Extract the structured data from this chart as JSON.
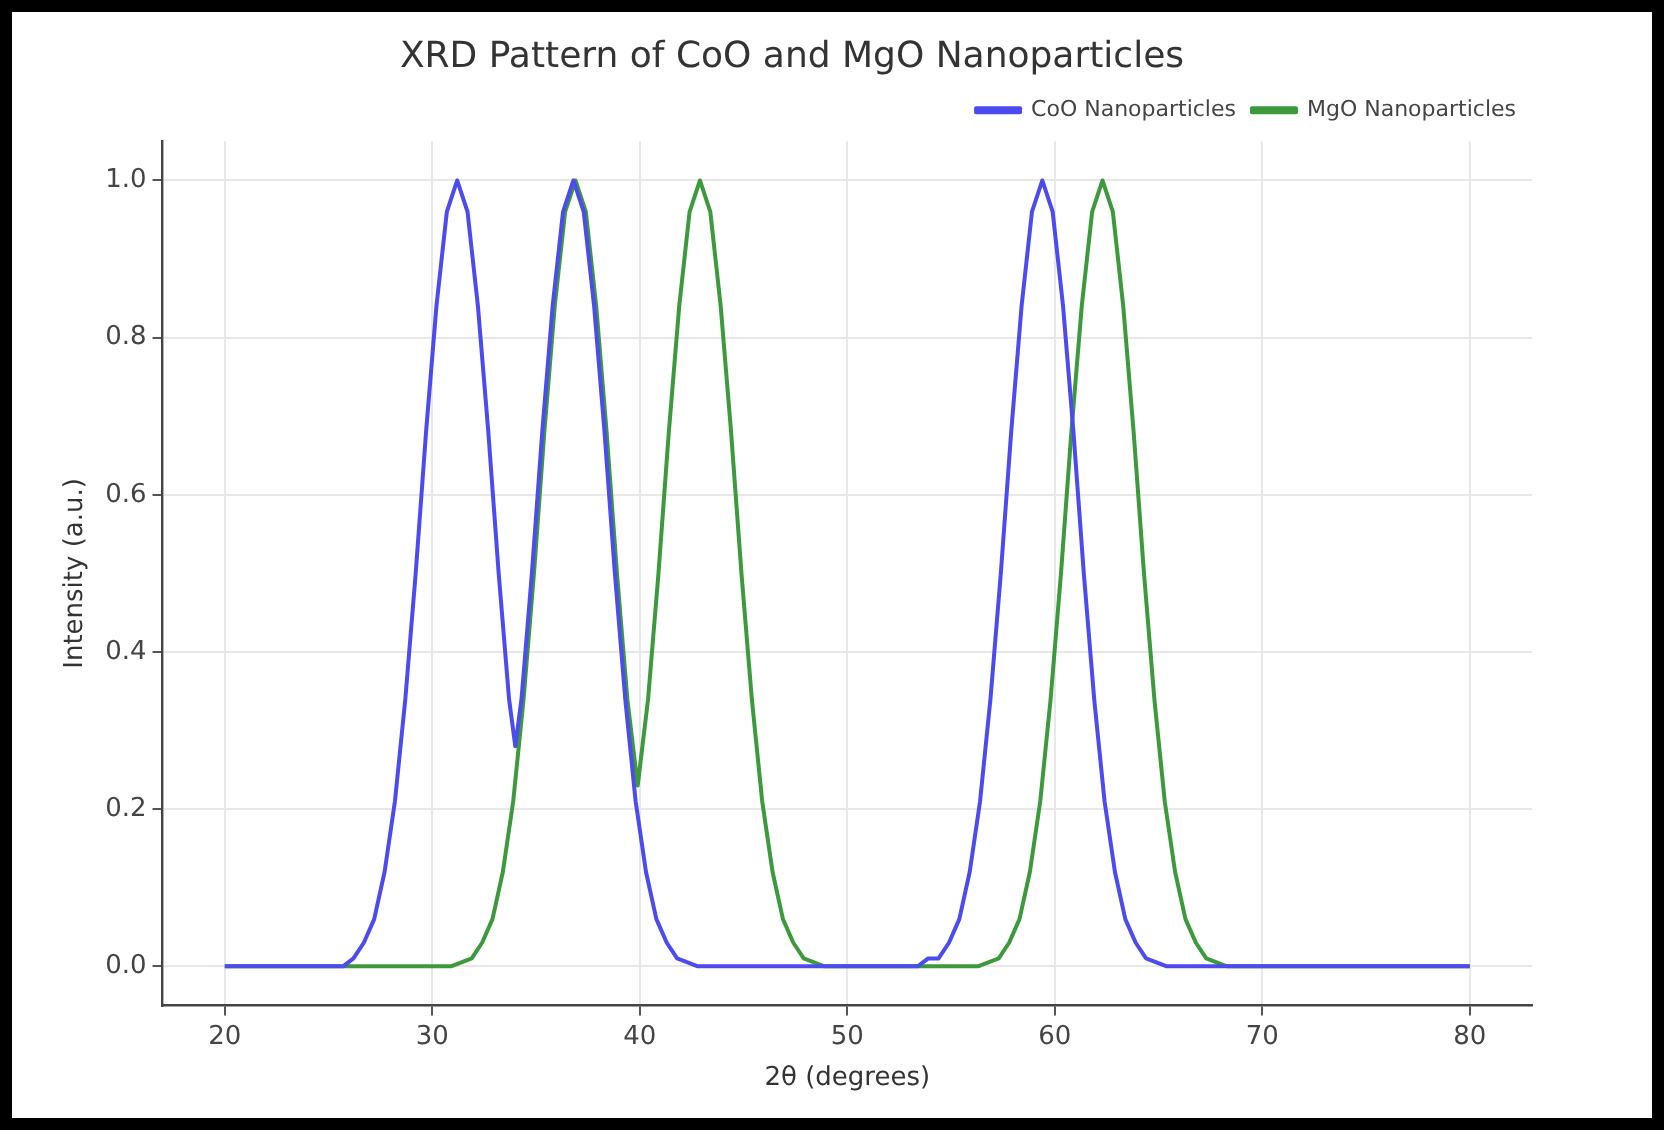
{
  "chart_data": {
    "type": "line",
    "title": "XRD Pattern of CoO and MgO Nanoparticles",
    "xlabel": "2θ (degrees)",
    "ylabel": "Intensity (a.u.)",
    "xlim": [
      17,
      83
    ],
    "xticks": [
      20,
      30,
      40,
      50,
      60,
      70,
      80
    ],
    "ylim": [
      -0.05,
      1.05
    ],
    "yticks": [
      {
        "value": 0,
        "label": "0.0"
      },
      0.2,
      0.4,
      0.6,
      0.8,
      {
        "value": 1,
        "label": "1.0"
      }
    ],
    "grid": true,
    "legend": "top right",
    "marker": "none",
    "line_style": "solid",
    "series": [
      {
        "name": "CoO Nanoparticles",
        "color": "#4b4bf0",
        "x": [
          20,
          25.7,
          26.2,
          26.7,
          27.2,
          27.7,
          28.2,
          28.7,
          29.2,
          29.7,
          30.2,
          30.7,
          31.2,
          31.7,
          32.2,
          32.7,
          33.2,
          33.7,
          34.0,
          34.3,
          34.8,
          35.3,
          35.8,
          36.3,
          36.8,
          37.3,
          37.8,
          38.3,
          38.8,
          39.3,
          39.8,
          40.3,
          40.8,
          41.3,
          41.8,
          42.8,
          53.4,
          53.9,
          54.4,
          54.9,
          55.4,
          55.9,
          56.4,
          56.9,
          57.4,
          57.9,
          58.4,
          58.9,
          59.4,
          59.9,
          60.4,
          60.9,
          61.4,
          61.9,
          62.4,
          62.9,
          63.4,
          63.9,
          64.4,
          65.4,
          80
        ],
        "values": [
          0,
          0,
          0.01,
          0.03,
          0.06,
          0.12,
          0.21,
          0.34,
          0.5,
          0.68,
          0.84,
          0.96,
          1,
          0.96,
          0.84,
          0.68,
          0.5,
          0.34,
          0.28,
          0.34,
          0.5,
          0.68,
          0.84,
          0.96,
          1,
          0.96,
          0.84,
          0.68,
          0.5,
          0.34,
          0.21,
          0.12,
          0.06,
          0.03,
          0.01,
          0,
          0,
          0.01,
          0.01,
          0.03,
          0.06,
          0.12,
          0.21,
          0.34,
          0.5,
          0.68,
          0.84,
          0.96,
          1,
          0.96,
          0.84,
          0.68,
          0.5,
          0.34,
          0.21,
          0.12,
          0.06,
          0.03,
          0.01,
          0,
          0
        ]
      },
      {
        "name": "MgO Nanoparticles",
        "color": "#3c9a3c",
        "x": [
          20,
          30.9,
          31.9,
          32.4,
          32.9,
          33.4,
          33.9,
          34.4,
          34.9,
          35.4,
          35.9,
          36.4,
          36.9,
          37.4,
          37.9,
          38.4,
          38.9,
          39.4,
          39.9,
          40.4,
          40.9,
          41.4,
          41.9,
          42.4,
          42.9,
          43.4,
          43.9,
          44.4,
          44.9,
          45.4,
          45.9,
          46.4,
          46.9,
          47.4,
          47.9,
          48.9,
          56.3,
          57.3,
          57.8,
          58.3,
          58.8,
          59.3,
          59.8,
          60.3,
          60.8,
          61.3,
          61.8,
          62.3,
          62.8,
          63.3,
          63.8,
          64.3,
          64.8,
          65.3,
          65.8,
          66.3,
          66.8,
          67.3,
          68.3,
          80
        ],
        "values": [
          0,
          0,
          0.01,
          0.03,
          0.06,
          0.12,
          0.21,
          0.34,
          0.5,
          0.68,
          0.84,
          0.96,
          1,
          0.96,
          0.84,
          0.68,
          0.5,
          0.34,
          0.23,
          0.34,
          0.5,
          0.68,
          0.84,
          0.96,
          1,
          0.96,
          0.84,
          0.68,
          0.5,
          0.34,
          0.21,
          0.12,
          0.06,
          0.03,
          0.01,
          0,
          0,
          0.01,
          0.03,
          0.06,
          0.12,
          0.21,
          0.34,
          0.5,
          0.68,
          0.84,
          0.96,
          1,
          0.96,
          0.84,
          0.68,
          0.5,
          0.34,
          0.21,
          0.12,
          0.06,
          0.03,
          0.01,
          0,
          0
        ]
      }
    ]
  }
}
